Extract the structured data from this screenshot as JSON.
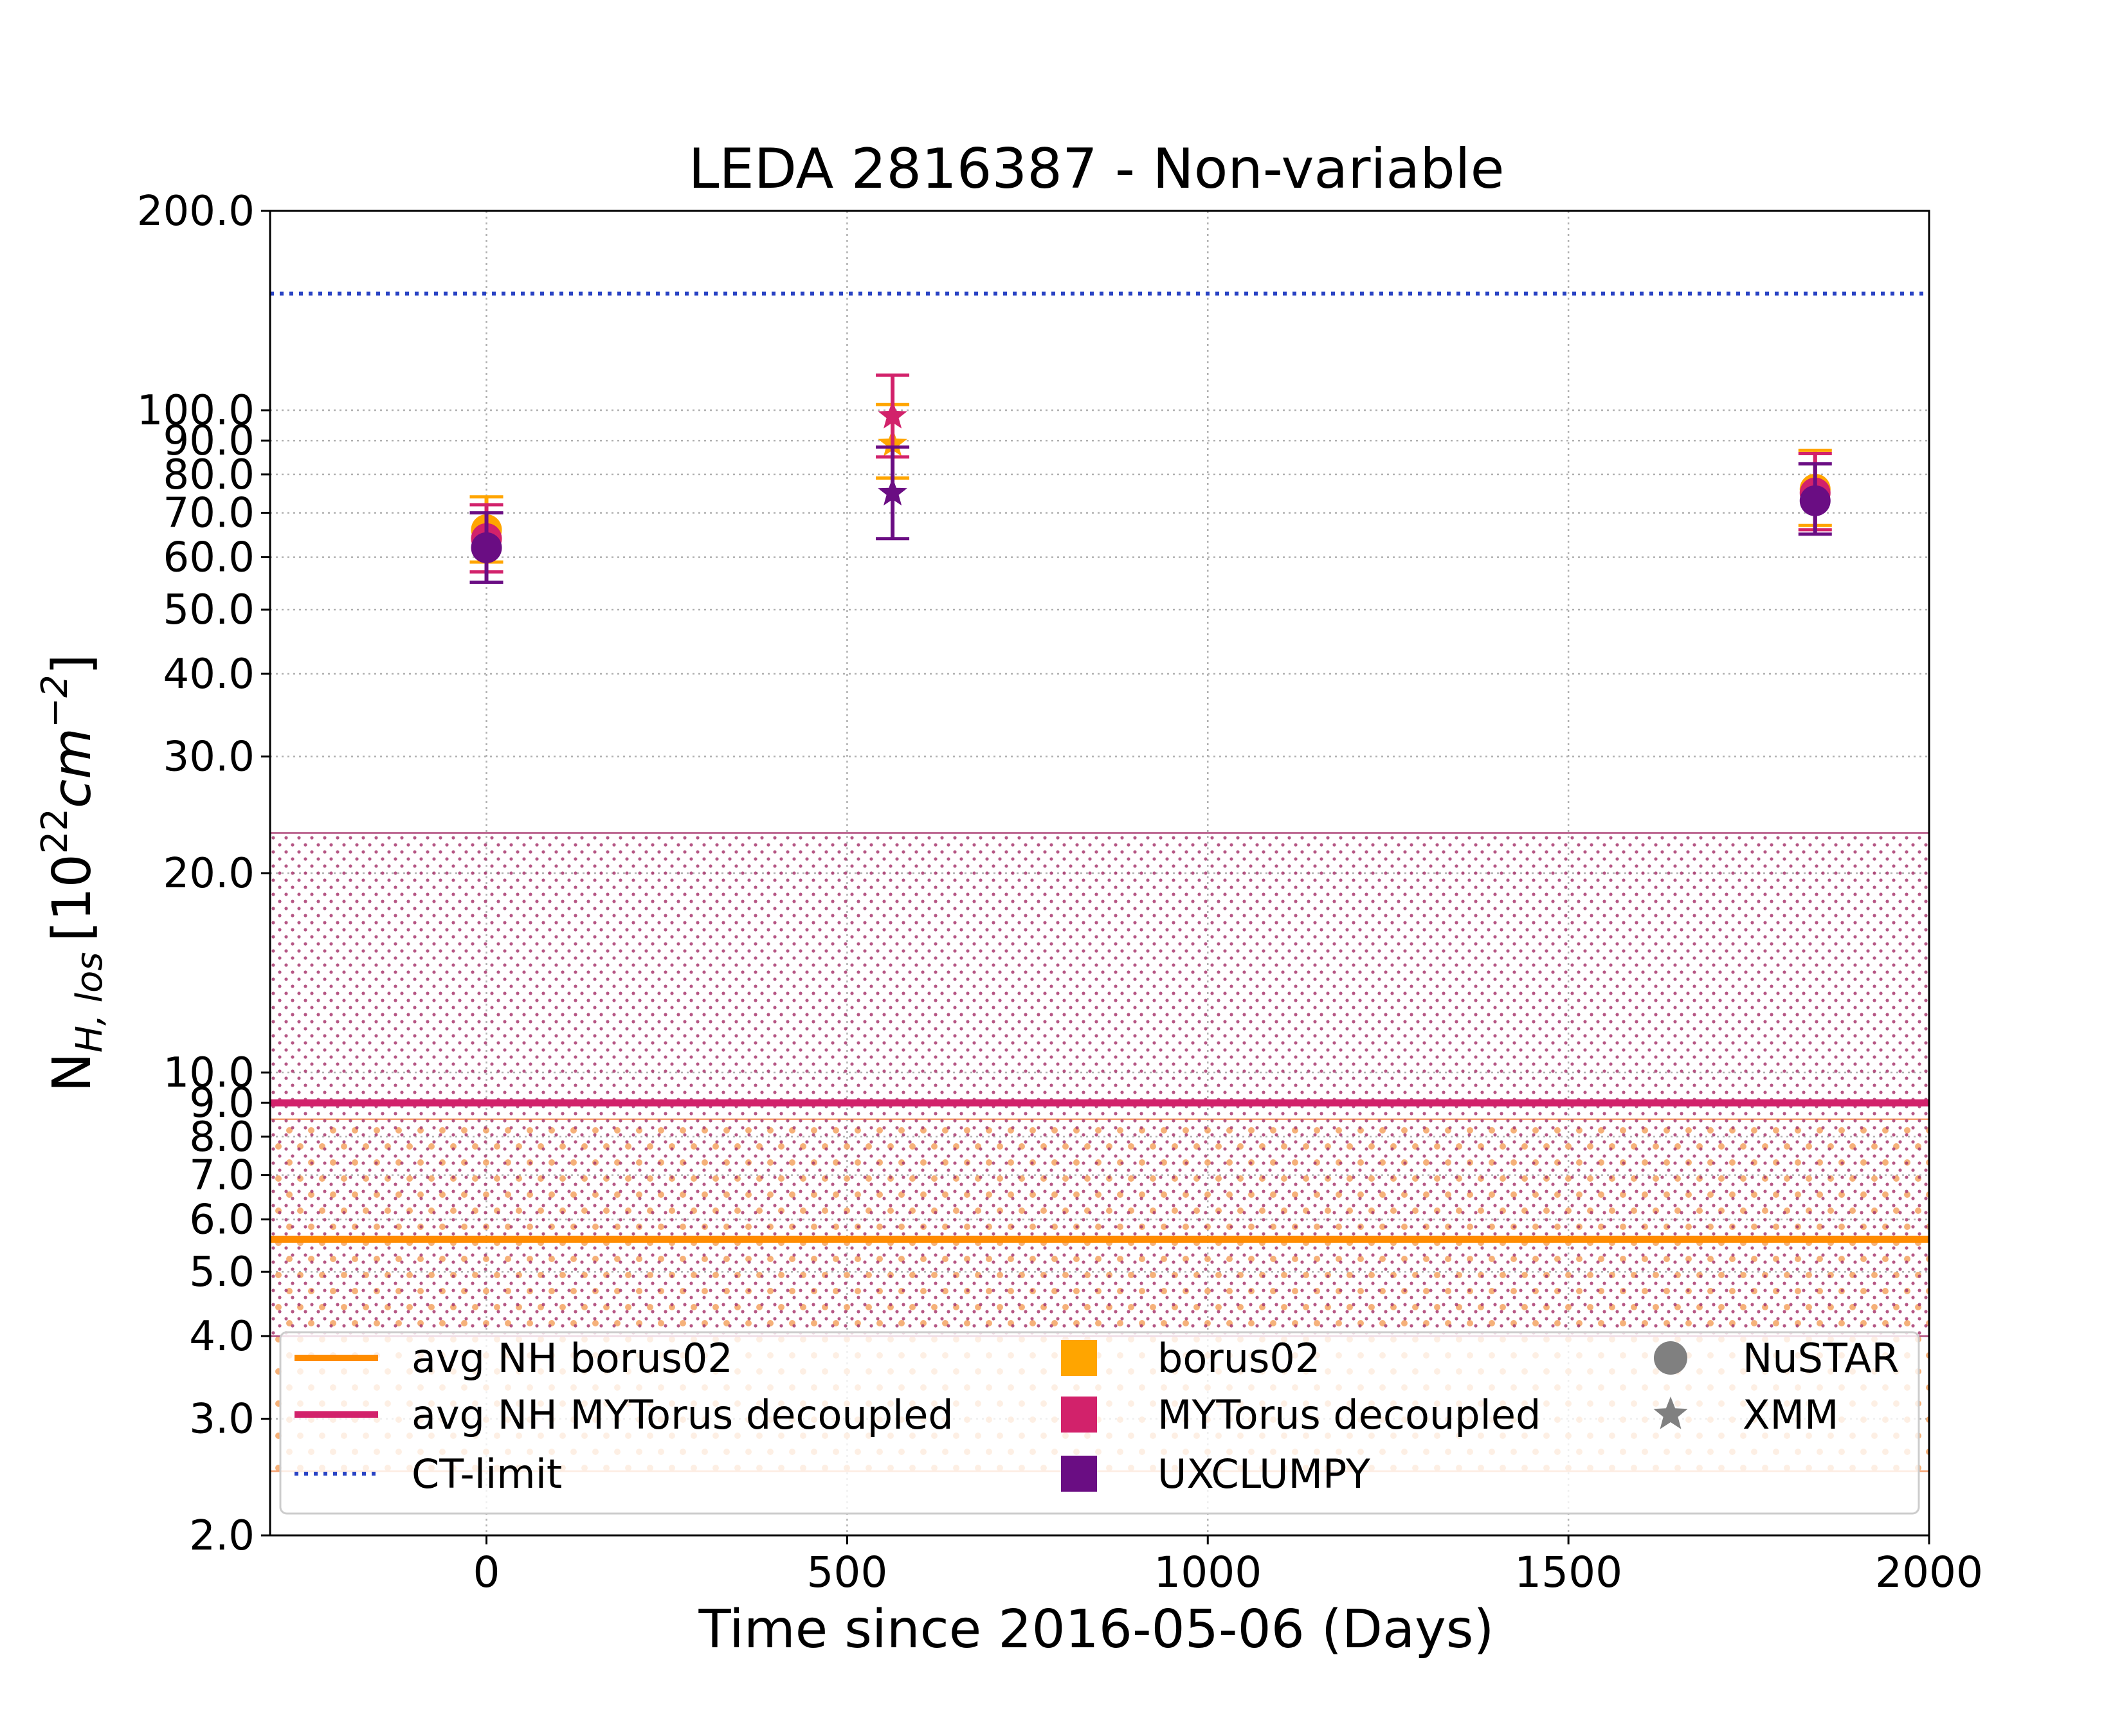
{
  "chart_data": {
    "type": "scatter",
    "title": "LEDA 2816387 - Non-variable",
    "xlabel": "Time since 2016-05-06 (Days)",
    "ylabel_main": "N",
    "ylabel_sub": "H, los",
    "ylabel_unit_open": "[10",
    "ylabel_unit_exp1": "22",
    "ylabel_unit_mid": "cm",
    "ylabel_unit_exp2": "−2",
    "ylabel_unit_close": "]",
    "yscale": "log",
    "xlim": [
      -300,
      2000
    ],
    "ylim": [
      2.0,
      200.0
    ],
    "grid": true,
    "x_ticks": [
      0,
      500,
      1000,
      1500,
      2000
    ],
    "x_tick_labels": [
      "0",
      "500",
      "1000",
      "1500",
      "2000"
    ],
    "y_ticks": [
      2,
      3,
      4,
      5,
      6,
      7,
      8,
      9,
      10,
      20,
      30,
      40,
      50,
      60,
      70,
      80,
      90,
      100,
      200
    ],
    "y_tick_labels": [
      "2.0",
      "3.0",
      "4.0",
      "5.0",
      "6.0",
      "7.0",
      "8.0",
      "9.0",
      "10.0",
      "20.0",
      "30.0",
      "40.0",
      "50.0",
      "60.0",
      "70.0",
      "80.0",
      "90.0",
      "100.0",
      "200.0"
    ],
    "colors": {
      "borus02": "#ffa500",
      "avg_borus02": "#ff8c00",
      "mytorus": "#d2226b",
      "uxclumpy": "#6a0d83",
      "ct_limit": "#2a44c4",
      "grid": "#b0b0b0"
    },
    "series": [
      {
        "name": "borus02",
        "color": "#ffa500",
        "points": [
          {
            "x": 0,
            "y": 66,
            "lo": 59,
            "hi": 74,
            "instrument": "NuSTAR"
          },
          {
            "x": 563,
            "y": 89,
            "lo": 79,
            "hi": 102,
            "instrument": "XMM"
          },
          {
            "x": 1842,
            "y": 76,
            "lo": 67,
            "hi": 87,
            "instrument": "NuSTAR"
          }
        ]
      },
      {
        "name": "MYTorus decoupled",
        "color": "#d2226b",
        "points": [
          {
            "x": 0,
            "y": 64,
            "lo": 57,
            "hi": 72,
            "instrument": "NuSTAR"
          },
          {
            "x": 563,
            "y": 98,
            "lo": 85,
            "hi": 113,
            "instrument": "XMM"
          },
          {
            "x": 1842,
            "y": 75,
            "lo": 66,
            "hi": 86,
            "instrument": "NuSTAR"
          }
        ]
      },
      {
        "name": "UXCLUMPY",
        "color": "#6a0d83",
        "points": [
          {
            "x": 0,
            "y": 62,
            "lo": 55,
            "hi": 70,
            "instrument": "NuSTAR"
          },
          {
            "x": 563,
            "y": 75,
            "lo": 64,
            "hi": 88,
            "instrument": "XMM"
          },
          {
            "x": 1842,
            "y": 73,
            "lo": 65,
            "hi": 83,
            "instrument": "NuSTAR"
          }
        ]
      }
    ],
    "horizontal_lines": [
      {
        "name": "avg NH borus02",
        "y": 5.6,
        "band": [
          2.5,
          8.5
        ],
        "color": "#ff8c00",
        "style": "solid"
      },
      {
        "name": "avg NH MYTorus decoupled",
        "y": 9.0,
        "band": [
          4.0,
          23.0
        ],
        "color": "#d2226b",
        "style": "solid"
      },
      {
        "name": "CT-limit",
        "y": 150,
        "color": "#2a44c4",
        "style": "dotted"
      }
    ],
    "legend": {
      "placement": "lower center",
      "columns": [
        [
          {
            "label": "avg NH borus02",
            "kind": "line",
            "color": "#ff8c00"
          },
          {
            "label": "avg NH MYTorus decoupled",
            "kind": "line",
            "color": "#d2226b"
          },
          {
            "label": "CT-limit",
            "kind": "dotted",
            "color": "#2a44c4"
          }
        ],
        [
          {
            "label": "borus02",
            "kind": "square",
            "color": "#ffa500"
          },
          {
            "label": "MYTorus decoupled",
            "kind": "square",
            "color": "#d2226b"
          },
          {
            "label": "UXCLUMPY",
            "kind": "square",
            "color": "#6a0d83"
          }
        ],
        [
          {
            "label": "NuSTAR",
            "kind": "circle",
            "color": "#808080"
          },
          {
            "label": "XMM",
            "kind": "star",
            "color": "#808080"
          }
        ]
      ]
    }
  }
}
